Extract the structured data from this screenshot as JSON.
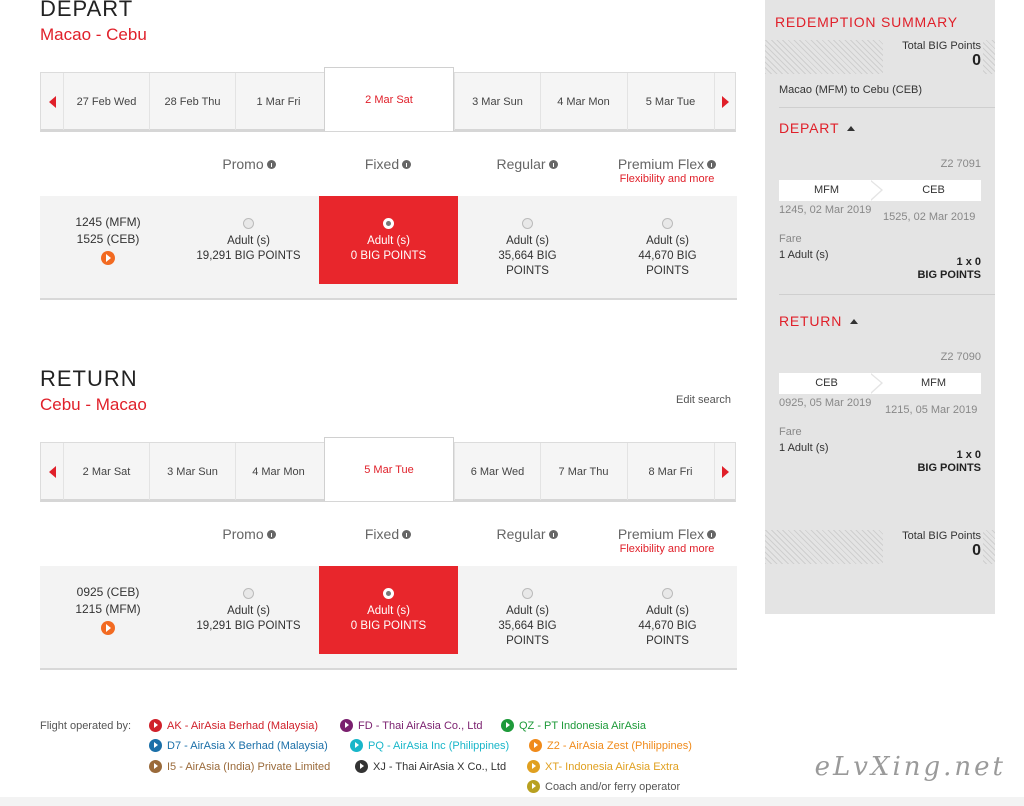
{
  "depart": {
    "title": "DEPART",
    "route": "Macao - Cebu",
    "dates": [
      "27 Feb Wed",
      "28 Feb Thu",
      "1 Mar Fri",
      "2 Mar Sat",
      "3 Mar Sun",
      "4 Mar Mon",
      "5 Mar Tue"
    ],
    "active_date": "2 Mar Sat",
    "fare_headers": {
      "promo": "Promo",
      "fixed": "Fixed",
      "regular": "Regular",
      "premium": "Premium Flex",
      "premium_sub": "Flexibility and more"
    },
    "times": {
      "dep": "1245 (MFM)",
      "arr": "1525 (CEB)"
    },
    "fares": {
      "promo": {
        "pax": "Adult (s)",
        "points": "19,291 BIG POINTS"
      },
      "fixed": {
        "pax": "Adult (s)",
        "points": "0 BIG POINTS"
      },
      "regular": {
        "pax": "Adult (s)",
        "points_l1": "35,664 BIG",
        "points_l2": "POINTS"
      },
      "premium": {
        "pax": "Adult (s)",
        "points_l1": "44,670 BIG",
        "points_l2": "POINTS"
      }
    }
  },
  "return": {
    "title": "RETURN",
    "route": "Cebu - Macao",
    "edit_search": "Edit search",
    "dates": [
      "2 Mar Sat",
      "3 Mar Sun",
      "4 Mar Mon",
      "5 Mar Tue",
      "6 Mar Wed",
      "7 Mar Thu",
      "8 Mar Fri"
    ],
    "active_date": "5 Mar Tue",
    "fare_headers": {
      "promo": "Promo",
      "fixed": "Fixed",
      "regular": "Regular",
      "premium": "Premium Flex",
      "premium_sub": "Flexibility and more"
    },
    "times": {
      "dep": "0925 (CEB)",
      "arr": "1215 (MFM)"
    },
    "fares": {
      "promo": {
        "pax": "Adult (s)",
        "points": "19,291 BIG POINTS"
      },
      "fixed": {
        "pax": "Adult (s)",
        "points": "0 BIG POINTS"
      },
      "regular": {
        "pax": "Adult (s)",
        "points_l1": "35,664 BIG",
        "points_l2": "POINTS"
      },
      "premium": {
        "pax": "Adult (s)",
        "points_l1": "44,670 BIG",
        "points_l2": "POINTS"
      }
    }
  },
  "summary": {
    "title": "REDEMPTION SUMMARY",
    "total_label": "Total BIG Points",
    "total_value": "0",
    "route_text": "Macao (MFM) to Cebu (CEB)",
    "depart": {
      "label": "DEPART",
      "flight": "Z2 7091",
      "from": "MFM",
      "to": "CEB",
      "dep_time": "1245, 02 Mar 2019",
      "arr_time": "1525, 02 Mar 2019",
      "fare_label": "Fare",
      "pax": "1 Adult (s)",
      "qty": "1 x 0",
      "unit": "BIG POINTS"
    },
    "return": {
      "label": "RETURN",
      "flight": "Z2 7090",
      "from": "CEB",
      "to": "MFM",
      "dep_time": "0925, 05 Mar 2019",
      "arr_time": "1215, 05 Mar 2019",
      "fare_label": "Fare",
      "pax": "1 Adult (s)",
      "qty": "1 x 0",
      "unit": "BIG POINTS"
    },
    "bottom_total_label": "Total BIG Points",
    "bottom_total_value": "0"
  },
  "legend": {
    "label": "Flight operated by:",
    "items": [
      {
        "text": "AK - AirAsia Berhad (Malaysia)",
        "color": "#d0202a"
      },
      {
        "text": "FD - Thai AirAsia Co., Ltd",
        "color": "#7a1f6e"
      },
      {
        "text": "QZ - PT Indonesia AirAsia",
        "color": "#1e9a3a"
      },
      {
        "text": "D7 - AirAsia X Berhad (Malaysia)",
        "color": "#1a6fa8"
      },
      {
        "text": "PQ - AirAsia Inc (Philippines)",
        "color": "#18b6c9"
      },
      {
        "text": "Z2 - AirAsia Zest (Philippines)",
        "color": "#f08a1a"
      },
      {
        "text": "I5 - AirAsia (India) Private Limited",
        "color": "#9a6a3a"
      },
      {
        "text": "XJ - Thai AirAsia X Co., Ltd",
        "color": "#333333"
      },
      {
        "text": "XT- Indonesia AirAsia Extra",
        "color": "#e0a020"
      },
      {
        "text": "Coach and/or ferry operator",
        "color": "#b8a020"
      }
    ]
  },
  "watermark": "eLvXing.net"
}
